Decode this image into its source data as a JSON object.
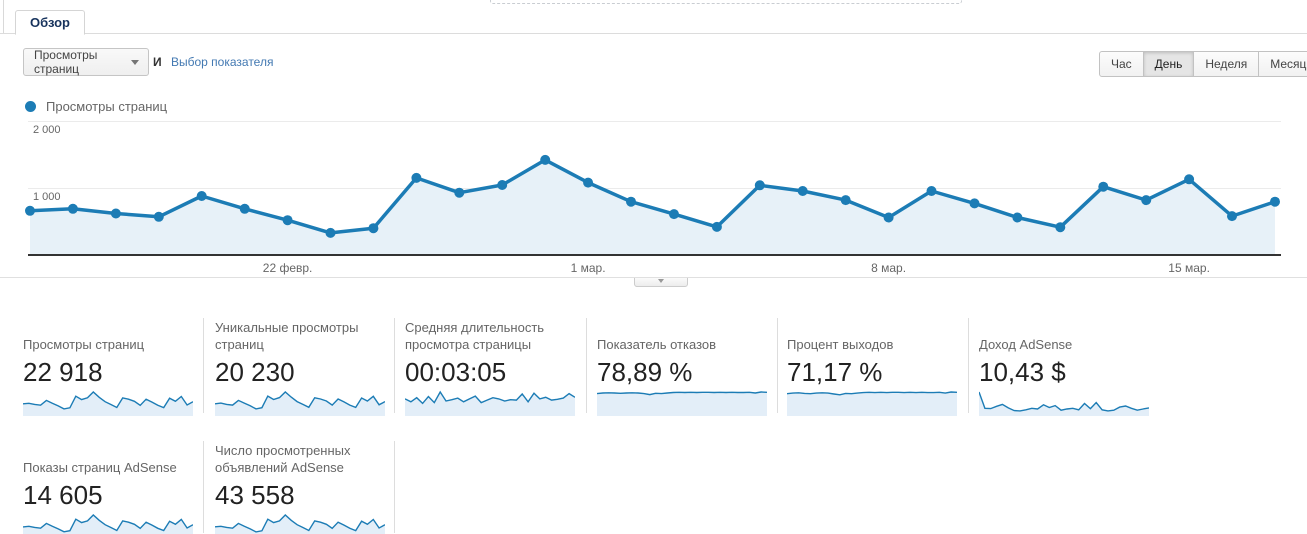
{
  "tab": {
    "label": "Обзор"
  },
  "toolbar": {
    "metric_selector": {
      "value": "Просмотры страниц"
    },
    "conjunction": "И",
    "select_metric_link": "Выбор показателя",
    "granularity": [
      {
        "label": "Час",
        "active": false
      },
      {
        "label": "День",
        "active": true
      },
      {
        "label": "Неделя",
        "active": false
      },
      {
        "label": "Месяц",
        "active": false
      }
    ]
  },
  "legend": {
    "label": "Просмотры страниц"
  },
  "colors": {
    "accent": "#1c7cb5",
    "link": "#4379b2",
    "spark_fill": "#e3eef8",
    "chart_fill": "#e7f1f8"
  },
  "chart_data": {
    "type": "line",
    "series_name": "Просмотры страниц",
    "x": [
      "16 февр.",
      "17 февр.",
      "18 февр.",
      "19 февр.",
      "20 февр.",
      "21 февр.",
      "22 февр.",
      "23 февр.",
      "24 февр.",
      "25 февр.",
      "26 февр.",
      "27 февр.",
      "28 февр.",
      "1 мар.",
      "2 мар.",
      "3 мар.",
      "4 мар.",
      "5 мар.",
      "6 мар.",
      "7 мар.",
      "8 мар.",
      "9 мар.",
      "10 мар.",
      "11 мар.",
      "12 мар.",
      "13 мар.",
      "14 мар.",
      "15 мар.",
      "16 мар.",
      "17 мар."
    ],
    "values": [
      660,
      690,
      620,
      570,
      880,
      690,
      520,
      330,
      400,
      1150,
      930,
      1045,
      1420,
      1080,
      795,
      610,
      420,
      1040,
      955,
      820,
      560,
      955,
      770,
      560,
      415,
      1020,
      820,
      1130,
      580,
      795
    ],
    "ylim": [
      0,
      2000
    ],
    "yticks": [
      "1 000",
      "2 000"
    ],
    "xticks": [
      {
        "label": "22 февр.",
        "index": 6
      },
      {
        "label": "1 мар.",
        "index": 13
      },
      {
        "label": "8 мар.",
        "index": 20
      },
      {
        "label": "15 мар.",
        "index": 27
      }
    ],
    "grid": true,
    "legend_position": "top-left",
    "line_color": "#1c7cb5",
    "fill_color": "#e7f1f8"
  },
  "cards": [
    {
      "label": "Просмотры страниц",
      "value": "22 918",
      "spark": [
        660,
        690,
        620,
        570,
        880,
        690,
        520,
        330,
        400,
        1150,
        930,
        1045,
        1420,
        1080,
        795,
        610,
        420,
        1040,
        955,
        820,
        560,
        955,
        770,
        560,
        415,
        1020,
        820,
        1130,
        580,
        795
      ]
    },
    {
      "label": "Уникальные просмотры страниц",
      "value": "20 230",
      "spark": [
        600,
        640,
        560,
        520,
        800,
        640,
        480,
        300,
        370,
        1050,
        850,
        960,
        1290,
        990,
        730,
        560,
        390,
        950,
        880,
        760,
        520,
        880,
        710,
        520,
        385,
        940,
        760,
        1040,
        540,
        730
      ]
    },
    {
      "label": "Средняя длительность просмотра страницы",
      "value": "00:03:05",
      "spark": [
        185,
        150,
        200,
        130,
        215,
        140,
        270,
        160,
        175,
        195,
        150,
        185,
        220,
        140,
        170,
        200,
        185,
        160,
        175,
        170,
        245,
        150,
        255,
        185,
        205,
        170,
        180,
        195,
        250,
        205
      ]
    },
    {
      "label": "Показатель отказов",
      "value": "78,89 %",
      "spark": [
        79,
        81,
        82,
        81,
        80,
        81,
        82,
        81,
        79,
        75,
        80,
        79,
        81,
        83,
        84,
        83,
        84,
        83,
        84,
        84,
        83,
        84,
        83,
        84,
        83,
        83,
        84,
        81,
        85,
        84
      ]
    },
    {
      "label": "Процент выходов",
      "value": "71,17 %",
      "spark": [
        72,
        74,
        75,
        73,
        72,
        74,
        75,
        74,
        71,
        68,
        73,
        72,
        74,
        76,
        77,
        76,
        77,
        76,
        77,
        77,
        76,
        77,
        76,
        77,
        76,
        76,
        77,
        74,
        78,
        77
      ]
    },
    {
      "label": "Доход AdSense",
      "value": "10,43 $",
      "spark": [
        1.15,
        0.3,
        0.28,
        0.4,
        0.5,
        0.32,
        0.18,
        0.16,
        0.22,
        0.3,
        0.26,
        0.48,
        0.34,
        0.44,
        0.2,
        0.26,
        0.3,
        0.22,
        0.55,
        0.28,
        0.6,
        0.22,
        0.16,
        0.2,
        0.36,
        0.42,
        0.3,
        0.2,
        0.26,
        0.32
      ]
    },
    {
      "label": "Показы страниц AdSense",
      "value": "14 605",
      "spark": [
        420,
        445,
        400,
        365,
        565,
        445,
        335,
        215,
        260,
        740,
        600,
        670,
        915,
        695,
        510,
        395,
        270,
        670,
        615,
        530,
        360,
        615,
        495,
        360,
        270,
        655,
        530,
        730,
        375,
        512
      ]
    },
    {
      "label": "Число просмотренных объявлений AdSense",
      "value": "43 558",
      "spark": [
        1250,
        1310,
        1180,
        1080,
        1670,
        1310,
        990,
        630,
        760,
        2180,
        1770,
        1980,
        2700,
        2050,
        1510,
        1160,
        800,
        1980,
        1820,
        1560,
        1065,
        1820,
        1465,
        1065,
        790,
        1940,
        1560,
        2150,
        1100,
        1510
      ]
    }
  ]
}
